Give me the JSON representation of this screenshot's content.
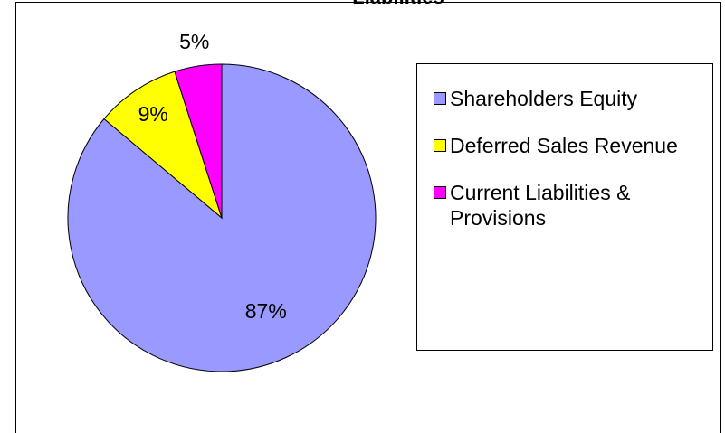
{
  "chart_data": {
    "type": "pie",
    "title": "Liabilities",
    "categories": [
      "Shareholders Equity",
      "Deferred Sales Revenue",
      "Current Liabilities & Provisions"
    ],
    "values": [
      87,
      9,
      5
    ],
    "value_labels": [
      "87%",
      "9%",
      "5%"
    ],
    "colors": [
      "#9999ff",
      "#ffff00",
      "#ff00ff"
    ],
    "legend": "right"
  }
}
